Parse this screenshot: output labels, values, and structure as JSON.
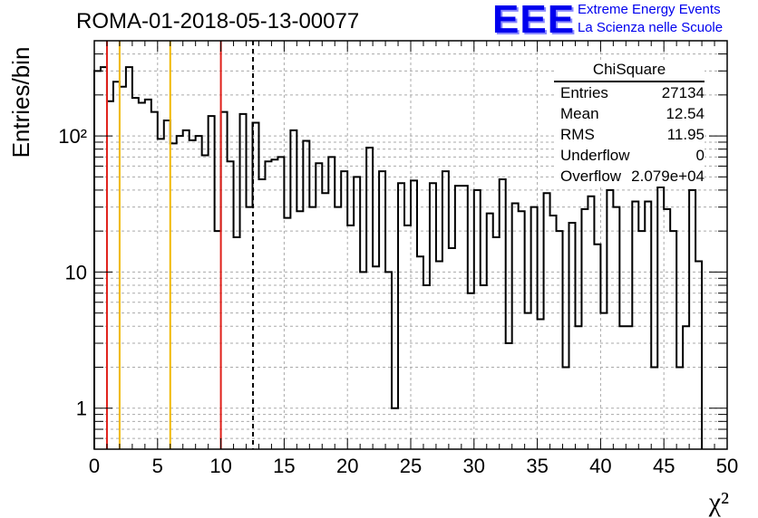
{
  "header": {
    "title": "ROMA-01-2018-05-13-00077",
    "logo_text": "EEE",
    "logo_line1": "Extreme Energy Events",
    "logo_line2": "La Scienza nelle Scuole"
  },
  "stats_box": {
    "name": "ChiSquare",
    "rows": [
      {
        "label": "Entries",
        "value": "27134"
      },
      {
        "label": "Mean",
        "value": "12.54"
      },
      {
        "label": "RMS",
        "value": "11.95"
      },
      {
        "label": "Underflow",
        "value": "0"
      },
      {
        "label": "Overflow",
        "value": "2.079e+04"
      }
    ]
  },
  "colors": {
    "red_line": "#e0201a",
    "yellow_line": "#f0b800",
    "grid": "#aaaaaa",
    "logo": "#0000ee"
  },
  "chart_data": {
    "type": "bar",
    "style": "step-histogram",
    "xlabel": "χ²",
    "ylabel": "Entries/bin",
    "xlim": [
      0,
      50
    ],
    "ylim": [
      0.5,
      500
    ],
    "yscale": "log",
    "grid": true,
    "bin_width": 0.5,
    "x_ticks": [
      "0",
      "5",
      "10",
      "15",
      "20",
      "25",
      "30",
      "35",
      "40",
      "45",
      "50"
    ],
    "y_ticks": [
      {
        "value": 1,
        "label": "1"
      },
      {
        "value": 10,
        "label": "10"
      },
      {
        "value": 100,
        "label": "10²"
      }
    ],
    "values": [
      300,
      320,
      180,
      250,
      230,
      320,
      190,
      175,
      185,
      150,
      95,
      130,
      88,
      100,
      110,
      93,
      100,
      72,
      140,
      20,
      150,
      65,
      18,
      145,
      30,
      125,
      48,
      65,
      67,
      70,
      25,
      110,
      28,
      92,
      30,
      63,
      38,
      70,
      30,
      55,
      22,
      50,
      10,
      82,
      11,
      55,
      10,
      1,
      45,
      22,
      47,
      13,
      8,
      45,
      12,
      55,
      15,
      43,
      43,
      7,
      40,
      8,
      27,
      18,
      48,
      3,
      32,
      28,
      5,
      30,
      4.5,
      38,
      26,
      20,
      2,
      23,
      4,
      29,
      36,
      16,
      5,
      40,
      30,
      4,
      4,
      33,
      20,
      33,
      2,
      42,
      29,
      20,
      2,
      4,
      40,
      12
    ],
    "vertical_markers": [
      {
        "x": 1,
        "color": "red",
        "style": "solid"
      },
      {
        "x": 2,
        "color": "yellow",
        "style": "solid"
      },
      {
        "x": 6,
        "color": "yellow",
        "style": "solid"
      },
      {
        "x": 10,
        "color": "red",
        "style": "solid"
      },
      {
        "x": 12.54,
        "color": "black",
        "style": "dashed"
      }
    ]
  }
}
